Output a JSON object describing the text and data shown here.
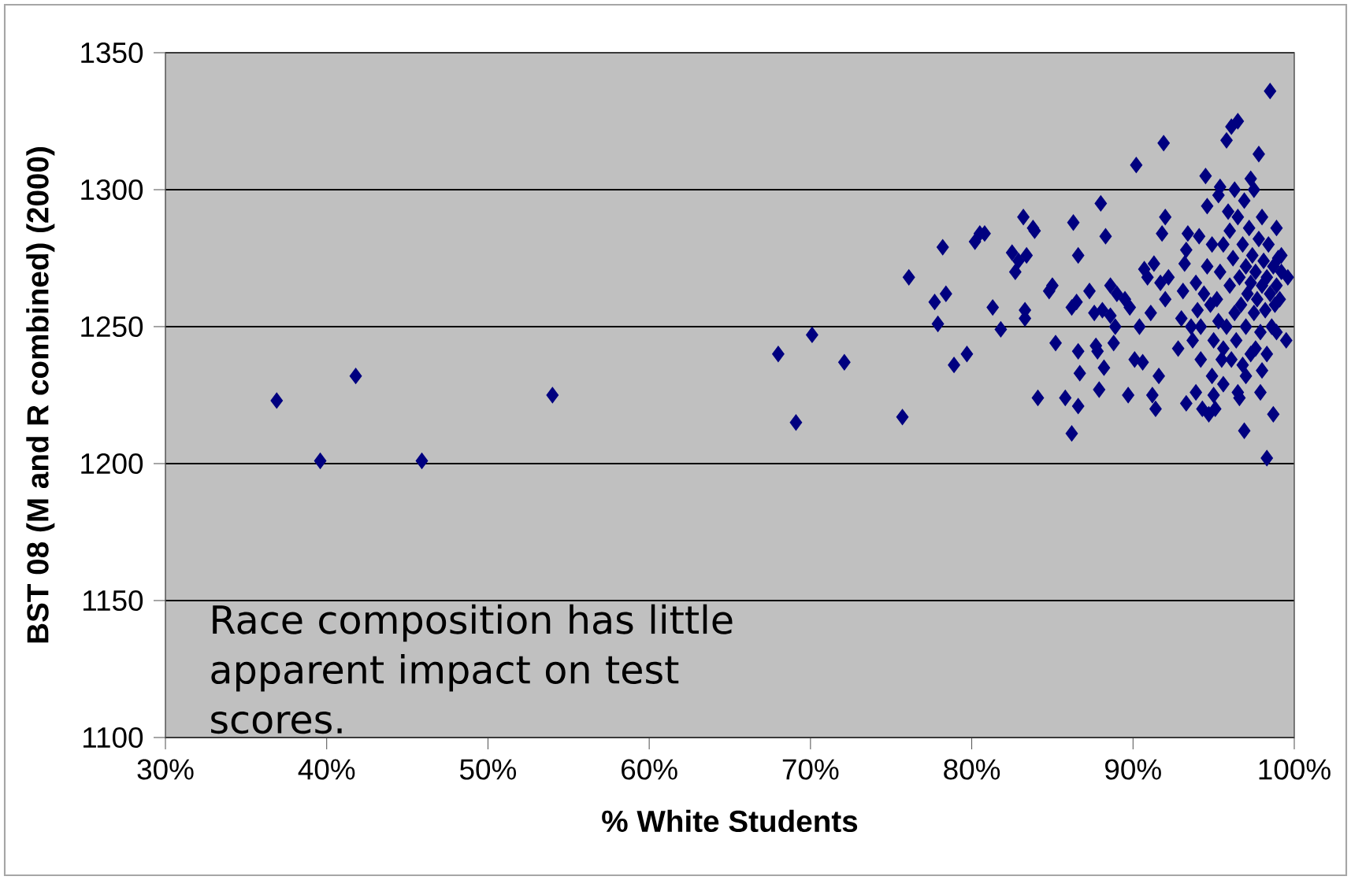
{
  "chart_data": {
    "type": "scatter",
    "xlabel": "% White Students",
    "ylabel": "BST 08 (M and R combined) (2000)",
    "annotations": [
      "Race composition has little apparent impact on test scores."
    ],
    "x": [
      36.9,
      39.6,
      41.8,
      45.9,
      54,
      68,
      69.1,
      70.1,
      72.1,
      75.7,
      76.1,
      77.7,
      77.9,
      78.2,
      78.4,
      78.9,
      79.7,
      80.2,
      80.5,
      80.8,
      81.3,
      81.8,
      82.5,
      82.7,
      82.9,
      83.2,
      83.3,
      83.3,
      83.4,
      83.8,
      83.9,
      84.1,
      84.8,
      85.0,
      85.2,
      85.8,
      86.2,
      86.2,
      86.3,
      86.5,
      86.6,
      86.6,
      86.6,
      86.7,
      87.3,
      87.6,
      87.7,
      87.8,
      87.9,
      88.0,
      88.1,
      88.2,
      88.3,
      88.6,
      88.6,
      88.8,
      88.9,
      89.0,
      89.5,
      89.7,
      89.8,
      90.1,
      90.2,
      90.4,
      90.6,
      90.7,
      90.9,
      91.1,
      91.2,
      91.3,
      91.4,
      91.6,
      91.7,
      91.8,
      91.9,
      92.0,
      92.2,
      92.0,
      92.8,
      93.0,
      93.1,
      93.2,
      93.3,
      93.4,
      93.3,
      93.7,
      93.9,
      93.9,
      94.1,
      94.2,
      94.3,
      94.5,
      94.6,
      94.7,
      94.9,
      95.0,
      95.1,
      95.3,
      95.4,
      95.5,
      95.6,
      95.8,
      96.1,
      96.5,
      96.6,
      96.9,
      97.8,
      98.0,
      98.3,
      98.5,
      98.7,
      99.5,
      99.6,
      98.9,
      99.2,
      95.2,
      95.4,
      95.6,
      95.8,
      96.0,
      96.0,
      96.2,
      96.3,
      96.4,
      96.5,
      96.6,
      96.7,
      96.8,
      96.9,
      97.0,
      97.0,
      97.1,
      97.2,
      97.3,
      97.3,
      97.4,
      97.5,
      97.5,
      97.6,
      97.7,
      97.8,
      97.9,
      98.0,
      98.0,
      98.1,
      98.2,
      98.3,
      98.4,
      98.5,
      98.6,
      98.7,
      98.8,
      98.9,
      99.0,
      99.1,
      95.0,
      95.3,
      94.8,
      94.6,
      94.4,
      94.2,
      96.1,
      96.8,
      97.6,
      98.3,
      99.2,
      98.9,
      97.3,
      96.3,
      95.9,
      94.9,
      94.0,
      93.6,
      95.6,
      97.9,
      97.0,
      96.5
    ],
    "values": [
      1223,
      1201,
      1232,
      1201,
      1225,
      1240,
      1215,
      1247,
      1237,
      1217,
      1268,
      1259,
      1251,
      1279,
      1262,
      1236,
      1240,
      1281,
      1284,
      1284,
      1257,
      1249,
      1277,
      1270,
      1274,
      1290,
      1256,
      1253,
      1276,
      1286,
      1285,
      1224,
      1263,
      1265,
      1244,
      1224,
      1211,
      1257,
      1288,
      1259,
      1241,
      1276,
      1221,
      1233,
      1263,
      1255,
      1243,
      1241,
      1227,
      1295,
      1256,
      1235,
      1283,
      1254,
      1265,
      1244,
      1250,
      1262,
      1260,
      1225,
      1257,
      1238,
      1309,
      1250,
      1237,
      1271,
      1268,
      1255,
      1225,
      1273,
      1220,
      1232,
      1266,
      1284,
      1317,
      1290,
      1268,
      1260,
      1242,
      1253,
      1263,
      1273,
      1278,
      1284,
      1222,
      1245,
      1266,
      1226,
      1283,
      1238,
      1220,
      1305,
      1294,
      1218,
      1232,
      1225,
      1220,
      1298,
      1301,
      1238,
      1229,
      1318,
      1323,
      1325,
      1224,
      1212,
      1313,
      1234,
      1202,
      1336,
      1218,
      1245,
      1268,
      1248,
      1276,
      1260,
      1270,
      1280,
      1250,
      1265,
      1285,
      1275,
      1255,
      1245,
      1290,
      1268,
      1258,
      1280,
      1296,
      1272,
      1250,
      1262,
      1286,
      1240,
      1266,
      1276,
      1255,
      1300,
      1270,
      1260,
      1282,
      1248,
      1265,
      1290,
      1274,
      1256,
      1268,
      1280,
      1262,
      1250,
      1272,
      1258,
      1265,
      1275,
      1260,
      1245,
      1252,
      1258,
      1272,
      1262,
      1250,
      1238,
      1236,
      1242,
      1240,
      1270,
      1286,
      1304,
      1300,
      1292,
      1280,
      1256,
      1250,
      1242,
      1226,
      1232,
      1226
    ],
    "color": "#000080",
    "marker": "diamond",
    "grid": "y",
    "xlim": [
      30,
      100
    ],
    "ylim": [
      1100,
      1350
    ],
    "xticks": [
      {
        "value": 30,
        "label": "30%"
      },
      {
        "value": 40,
        "label": "40%"
      },
      {
        "value": 50,
        "label": "50%"
      },
      {
        "value": 60,
        "label": "60%"
      },
      {
        "value": 70,
        "label": "70%"
      },
      {
        "value": 80,
        "label": "80%"
      },
      {
        "value": 90,
        "label": "90%"
      },
      {
        "value": 100,
        "label": "100%"
      }
    ],
    "yticks": [
      1100,
      1150,
      1200,
      1250,
      1300,
      1350
    ]
  }
}
